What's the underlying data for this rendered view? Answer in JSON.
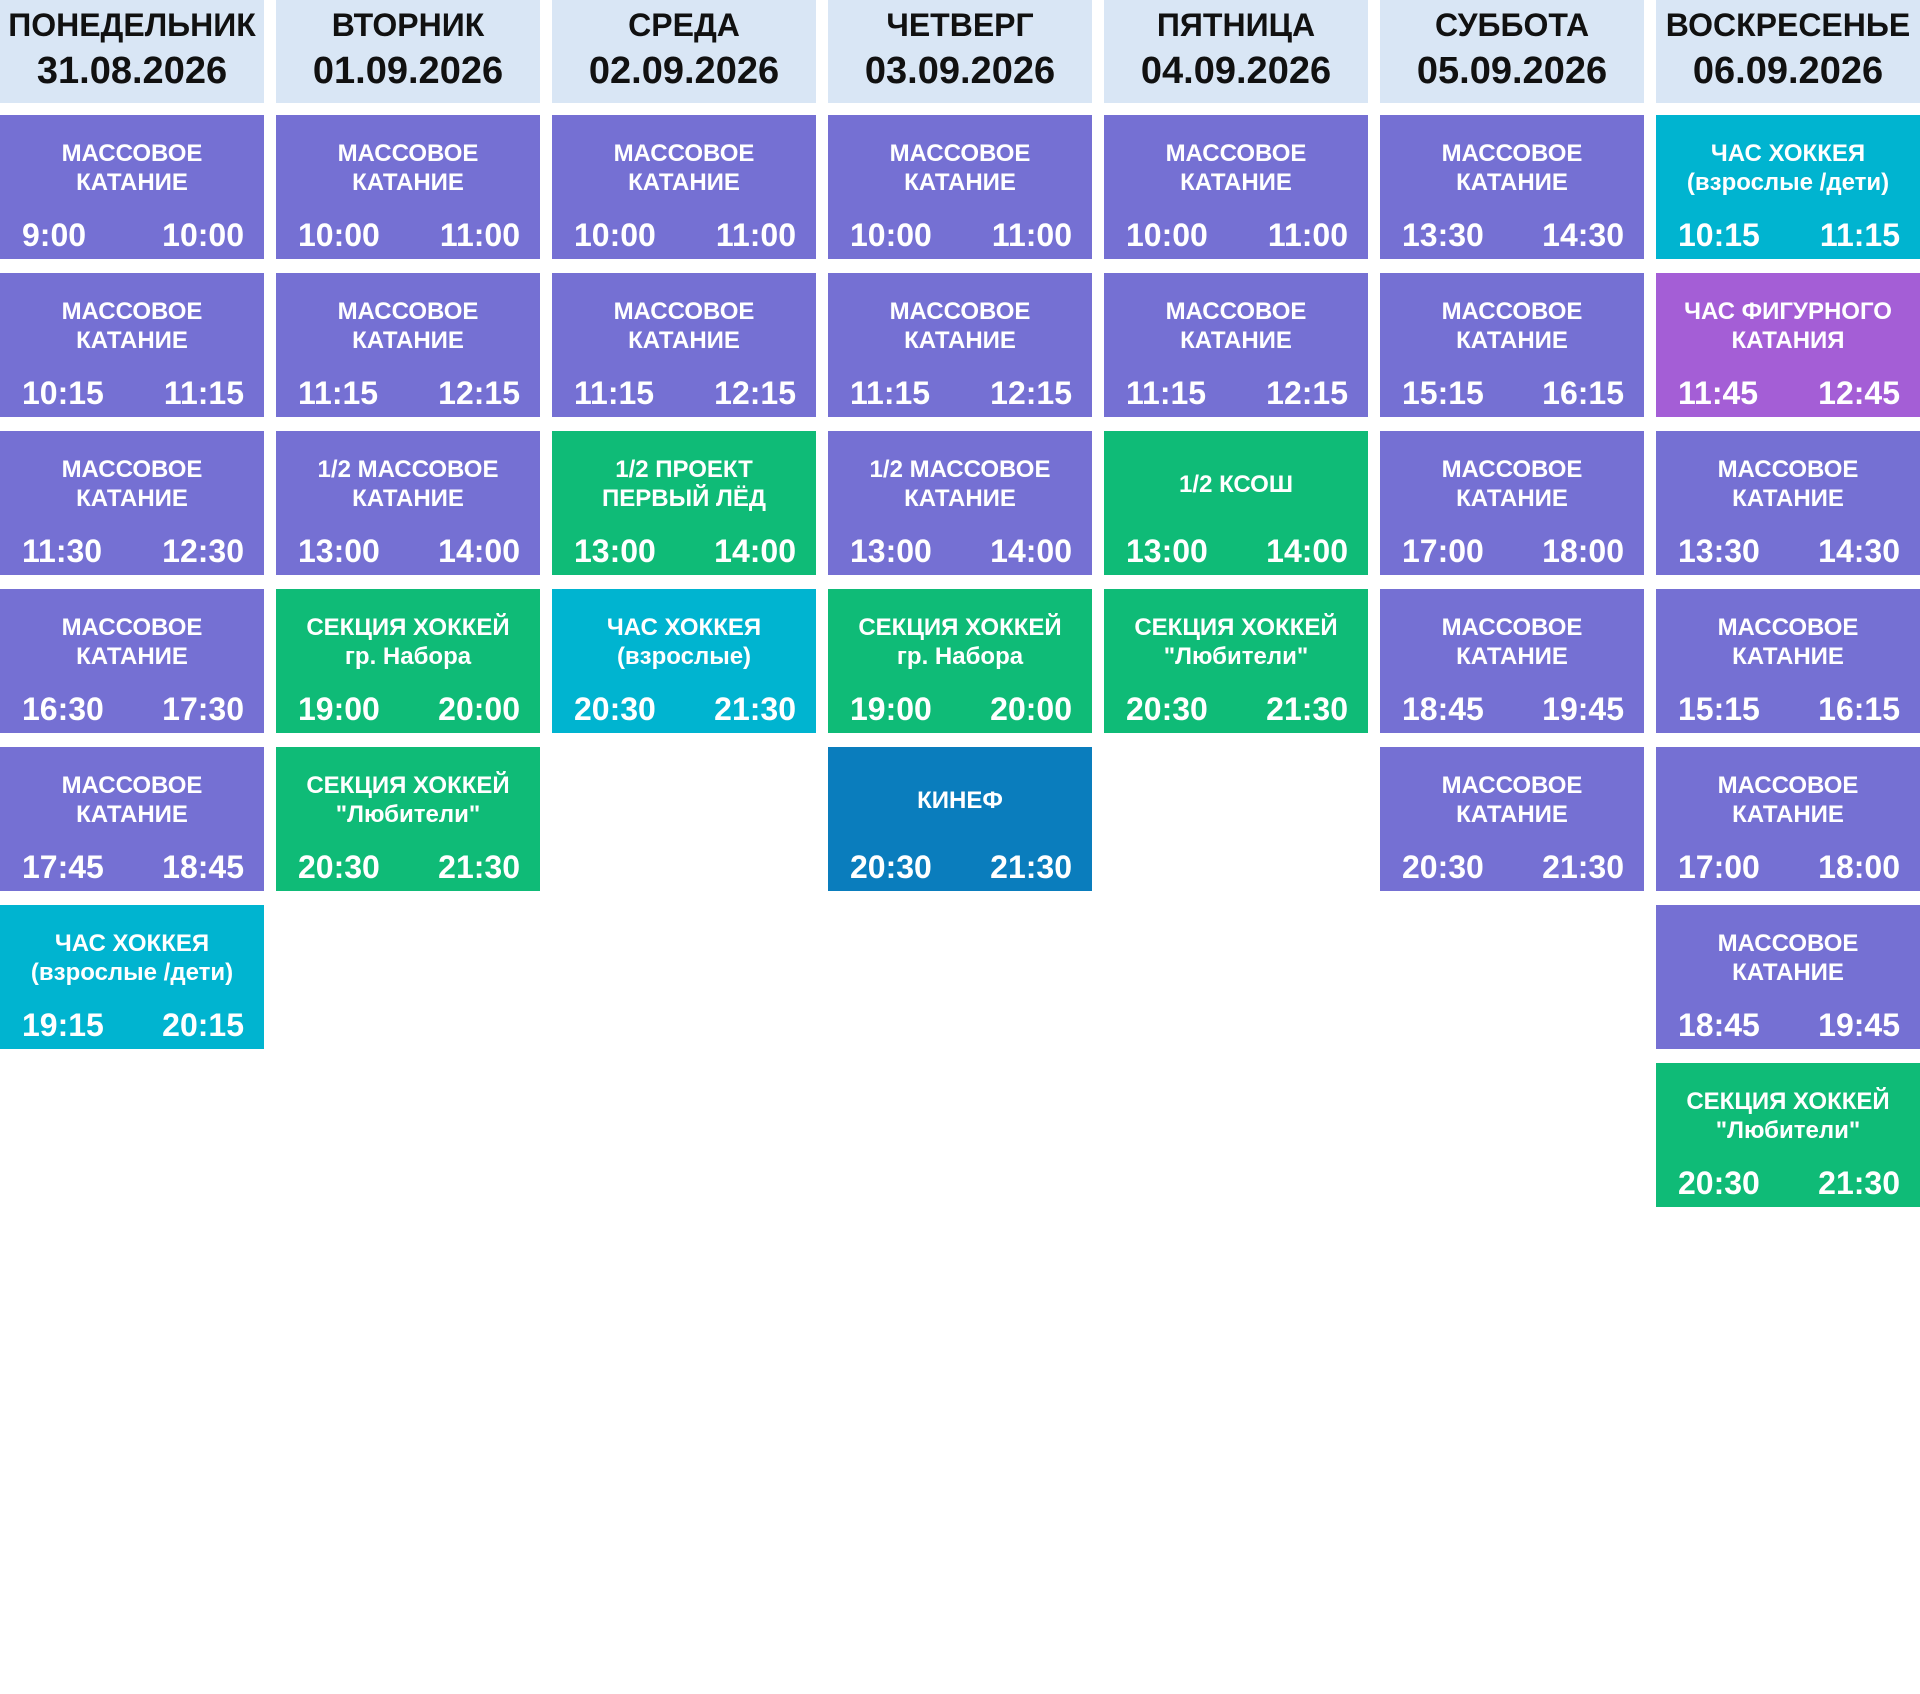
{
  "days": [
    {
      "name": "ПОНЕДЕЛЬНИК",
      "date": "31.08.2026",
      "events": [
        {
          "title": "МАССОВОЕ КАТАНИЕ",
          "start": "9:00",
          "end": "10:00",
          "color": "#7570d3"
        },
        {
          "title": "МАССОВОЕ КАТАНИЕ",
          "start": "10:15",
          "end": "11:15",
          "color": "#7570d3"
        },
        {
          "title": "МАССОВОЕ КАТАНИЕ",
          "start": "11:30",
          "end": "12:30",
          "color": "#7570d3"
        },
        {
          "title": "МАССОВОЕ КАТАНИЕ",
          "start": "16:30",
          "end": "17:30",
          "color": "#7570d3"
        },
        {
          "title": "МАССОВОЕ КАТАНИЕ",
          "start": "17:45",
          "end": "18:45",
          "color": "#7570d3"
        },
        {
          "title": "ЧАС ХОККЕЯ",
          "subtitle": "(взрослые /дети)",
          "start": "19:15",
          "end": "20:15",
          "color": "#00b4d0"
        }
      ]
    },
    {
      "name": "ВТОРНИК",
      "date": "01.09.2026",
      "events": [
        {
          "title": "МАССОВОЕ КАТАНИЕ",
          "start": "10:00",
          "end": "11:00",
          "color": "#7570d3"
        },
        {
          "title": "МАССОВОЕ КАТАНИЕ",
          "start": "11:15",
          "end": "12:15",
          "color": "#7570d3"
        },
        {
          "title": "1/2 МАССОВОЕ КАТАНИЕ",
          "start": "13:00",
          "end": "14:00",
          "color": "#7570d3"
        },
        {
          "title": "СЕКЦИЯ ХОККЕЙ",
          "subtitle": "гр. Набора",
          "start": "19:00",
          "end": "20:00",
          "color": "#0fbb77"
        },
        {
          "title": "СЕКЦИЯ ХОККЕЙ",
          "subtitle": "\"Любители\"",
          "start": "20:30",
          "end": "21:30",
          "color": "#0fbb77"
        }
      ]
    },
    {
      "name": "СРЕДА",
      "date": "02.09.2026",
      "events": [
        {
          "title": "МАССОВОЕ КАТАНИЕ",
          "start": "10:00",
          "end": "11:00",
          "color": "#7570d3"
        },
        {
          "title": "МАССОВОЕ КАТАНИЕ",
          "start": "11:15",
          "end": "12:15",
          "color": "#7570d3"
        },
        {
          "title": "1/2 ПРОЕКТ ПЕРВЫЙ ЛЁД",
          "start": "13:00",
          "end": "14:00",
          "color": "#0fbb77"
        },
        {
          "title": "ЧАС ХОККЕЯ",
          "subtitle": "(взрослые)",
          "start": "20:30",
          "end": "21:30",
          "color": "#00b4d0"
        }
      ]
    },
    {
      "name": "ЧЕТВЕРГ",
      "date": "03.09.2026",
      "events": [
        {
          "title": "МАССОВОЕ КАТАНИЕ",
          "start": "10:00",
          "end": "11:00",
          "color": "#7570d3"
        },
        {
          "title": "МАССОВОЕ КАТАНИЕ",
          "start": "11:15",
          "end": "12:15",
          "color": "#7570d3"
        },
        {
          "title": "1/2 МАССОВОЕ КАТАНИЕ",
          "start": "13:00",
          "end": "14:00",
          "color": "#7570d3"
        },
        {
          "title": "СЕКЦИЯ ХОККЕЙ",
          "subtitle": "гр. Набора",
          "start": "19:00",
          "end": "20:00",
          "color": "#0fbb77"
        },
        {
          "title": "КИНЕФ",
          "start": "20:30",
          "end": "21:30",
          "color": "#0a7dbd"
        }
      ]
    },
    {
      "name": "ПЯТНИЦА",
      "date": "04.09.2026",
      "events": [
        {
          "title": "МАССОВОЕ КАТАНИЕ",
          "start": "10:00",
          "end": "11:00",
          "color": "#7570d3"
        },
        {
          "title": "МАССОВОЕ КАТАНИЕ",
          "start": "11:15",
          "end": "12:15",
          "color": "#7570d3"
        },
        {
          "title": "1/2 КСОШ",
          "start": "13:00",
          "end": "14:00",
          "color": "#0fbb77"
        },
        {
          "title": "СЕКЦИЯ ХОККЕЙ",
          "subtitle": "\"Любители\"",
          "start": "20:30",
          "end": "21:30",
          "color": "#0fbb77"
        }
      ]
    },
    {
      "name": "СУББОТА",
      "date": "05.09.2026",
      "events": [
        {
          "title": "МАССОВОЕ КАТАНИЕ",
          "start": "13:30",
          "end": "14:30",
          "color": "#7570d3"
        },
        {
          "title": "МАССОВОЕ КАТАНИЕ",
          "start": "15:15",
          "end": "16:15",
          "color": "#7570d3"
        },
        {
          "title": "МАССОВОЕ КАТАНИЕ",
          "start": "17:00",
          "end": "18:00",
          "color": "#7570d3"
        },
        {
          "title": "МАССОВОЕ КАТАНИЕ",
          "start": "18:45",
          "end": "19:45",
          "color": "#7570d3"
        },
        {
          "title": "МАССОВОЕ КАТАНИЕ",
          "start": "20:30",
          "end": "21:30",
          "color": "#7570d3"
        }
      ]
    },
    {
      "name": "ВОСКРЕСЕНЬЕ",
      "date": "06.09.2026",
      "events": [
        {
          "title": "ЧАС ХОККЕЯ",
          "subtitle": "(взрослые /дети)",
          "start": "10:15",
          "end": "11:15",
          "color": "#00b4d0"
        },
        {
          "title": "ЧАС ФИГУРНОГО КАТАНИЯ",
          "start": "11:45",
          "end": "12:45",
          "color": "#a45ed6"
        },
        {
          "title": "МАССОВОЕ КАТАНИЕ",
          "start": "13:30",
          "end": "14:30",
          "color": "#7570d3"
        },
        {
          "title": "МАССОВОЕ КАТАНИЕ",
          "start": "15:15",
          "end": "16:15",
          "color": "#7570d3"
        },
        {
          "title": "МАССОВОЕ КАТАНИЕ",
          "start": "17:00",
          "end": "18:00",
          "color": "#7570d3"
        },
        {
          "title": "МАССОВОЕ КАТАНИЕ",
          "start": "18:45",
          "end": "19:45",
          "color": "#7570d3"
        },
        {
          "title": "СЕКЦИЯ ХОККЕЙ",
          "subtitle": "\"Любители\"",
          "start": "20:30",
          "end": "21:30",
          "color": "#0fbb77"
        }
      ]
    }
  ]
}
